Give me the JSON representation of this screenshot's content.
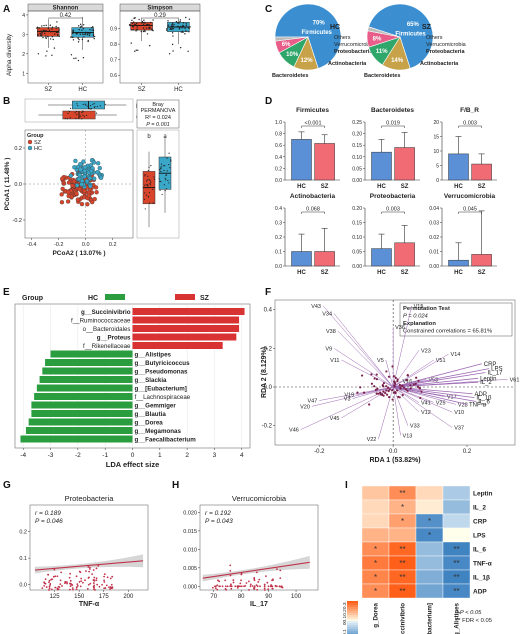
{
  "panel_labels": [
    "A",
    "B",
    "C",
    "D",
    "E",
    "F",
    "G",
    "H",
    "I"
  ],
  "colors": {
    "SZ": "#d8452b",
    "HC": "#3aa7c9",
    "blue_bar": "#5b8fd6",
    "pink_bar": "#f06b74",
    "green": "#2a9d3f",
    "red": "#d93232",
    "purple": "#9b67b3"
  },
  "chart_data": [
    {
      "id": "A",
      "type": "box",
      "ylabel": "Alpha diversity",
      "categories": [
        "SZ",
        "HC"
      ],
      "facets": [
        {
          "title": "Shannon",
          "pvalue": "0.42",
          "yticks": [
            "1",
            "2",
            "3",
            "4"
          ],
          "ylim": [
            0.5,
            4.1
          ],
          "boxes": [
            {
              "group": "SZ",
              "q1": 2.9,
              "median": 3.15,
              "q3": 3.35,
              "min": 2.3,
              "max": 3.8
            },
            {
              "group": "HC",
              "q1": 2.85,
              "median": 3.1,
              "q3": 3.35,
              "min": 2.2,
              "max": 3.9
            }
          ]
        },
        {
          "title": "Simpson",
          "pvalue": "0.29",
          "yticks": [
            "0.6",
            "0.7",
            "0.8",
            "0.9"
          ],
          "ylim": [
            0.55,
            1.0
          ],
          "boxes": [
            {
              "group": "SZ",
              "q1": 0.89,
              "median": 0.92,
              "q3": 0.94,
              "min": 0.82,
              "max": 0.97
            },
            {
              "group": "HC",
              "q1": 0.88,
              "median": 0.91,
              "q3": 0.94,
              "min": 0.8,
              "max": 0.97
            }
          ]
        }
      ]
    },
    {
      "id": "B",
      "type": "scatter",
      "xlabel": "PCoA2 ( 13.07% )",
      "ylabel": "PCoA1 ( 11.48% )",
      "xticks": [
        "-0.4",
        "-0.2",
        "0.0",
        "0.2"
      ],
      "yticks": [
        "-0.2",
        "0.0",
        "0.2"
      ],
      "xlim": [
        -0.45,
        0.35
      ],
      "ylim": [
        -0.3,
        0.3
      ],
      "legend": {
        "title": "Group",
        "entries": [
          "SZ",
          "HC"
        ]
      },
      "stats": {
        "title": "Bray",
        "method": "PERMANOVA",
        "r2": "R² = 0.024",
        "p": "P = 0.001"
      },
      "side_box_letters": [
        "b",
        "a"
      ],
      "top_box_letters": [
        "b",
        "a"
      ]
    },
    {
      "id": "C",
      "type": "pie",
      "pies": [
        {
          "group": "HC",
          "slices": [
            {
              "name": "Firmicutes",
              "value": 70,
              "label": "70%"
            },
            {
              "name": "Actinobacteria",
              "value": 12,
              "label": "12%"
            },
            {
              "name": "Proteobacteria",
              "value": 10,
              "label": "10%"
            },
            {
              "name": "Verrucomicrobia",
              "value": 6,
              "label": "6%"
            },
            {
              "name": "Others",
              "value": 2,
              "label": ""
            }
          ],
          "extra_labels": [
            "Bacteroidetes"
          ]
        },
        {
          "group": "SZ",
          "slices": [
            {
              "name": "Firmicutes",
              "value": 65,
              "label": "65%"
            },
            {
              "name": "Actinobacteria",
              "value": 14,
              "label": "14%"
            },
            {
              "name": "Proteobacteria",
              "value": 11,
              "label": "11%"
            },
            {
              "name": "Verrucomicrobia",
              "value": 8,
              "label": "8%"
            },
            {
              "name": "Others",
              "value": 2,
              "label": ""
            }
          ],
          "extra_labels": [
            "Bacteroidetes"
          ]
        }
      ],
      "colors": [
        "#3b8fd0",
        "#c8a248",
        "#2fa66a",
        "#e85d8a",
        "#bbbbbb"
      ]
    },
    {
      "id": "D",
      "type": "bar",
      "categories": [
        "HC",
        "SZ"
      ],
      "subplots": [
        {
          "title": "Firmicutes",
          "pvalue": "<0.001",
          "yticks": [
            "0.0",
            "0.2",
            "0.4",
            "0.6",
            "0.8",
            "1.0"
          ],
          "ymax": 1.0,
          "values": [
            0.7,
            0.63
          ],
          "errors": [
            0.13,
            0.15
          ]
        },
        {
          "title": "Bacteroidetes",
          "pvalue": "0.019",
          "yticks": [
            "0.00",
            "0.05",
            "0.10",
            "0.15",
            "0.20",
            "0.25"
          ],
          "ymax": 0.25,
          "values": [
            0.12,
            0.14
          ],
          "errors": [
            0.055,
            0.065
          ]
        },
        {
          "title": "F/B_R",
          "pvalue": "0.003",
          "yticks": [
            "0",
            "5",
            "10",
            "15",
            "20"
          ],
          "ymax": 20,
          "values": [
            9.0,
            5.5
          ],
          "errors": [
            6.0,
            3.5
          ]
        },
        {
          "title": "Actinobacteria",
          "pvalue": "0.068",
          "yticks": [
            "0.0",
            "0.1",
            "0.2",
            "0.3",
            "0.4"
          ],
          "ymax": 0.4,
          "values": [
            0.1,
            0.1
          ],
          "errors": [
            0.12,
            0.16
          ]
        },
        {
          "title": "Proteobacteria",
          "pvalue": "0.003",
          "yticks": [
            "0.00",
            "0.05",
            "0.10",
            "0.15",
            "0.20"
          ],
          "ymax": 0.2,
          "values": [
            0.06,
            0.08
          ],
          "errors": [
            0.05,
            0.06
          ]
        },
        {
          "title": "Verrucomicrobia",
          "pvalue": "0.045",
          "yticks": [
            "0.00",
            "0.01",
            "0.02",
            "0.03",
            "0.04"
          ],
          "ymax": 0.04,
          "values": [
            0.004,
            0.008
          ],
          "errors": [
            0.012,
            0.03
          ]
        }
      ]
    },
    {
      "id": "E",
      "type": "bar",
      "orientation": "horizontal",
      "xlabel": "LDA effect size",
      "xticks": [
        "-4",
        "-3",
        "-2",
        "-1",
        "0",
        "1",
        "2",
        "3",
        "4"
      ],
      "xlim": [
        -4.3,
        4.3
      ],
      "legend": {
        "title": "Group",
        "entries": [
          "HC",
          "SZ"
        ]
      },
      "categories": [
        "g__Succinivibrio",
        "f__Ruminococcaceae",
        "o__Bacteroidales",
        "g__Proteus",
        "f__Rikenellaceae",
        "g__Alistipes",
        "g__Butyricicoccus",
        "g__Pseudomonas",
        "g__Slackia",
        "g__[Eubacterium]",
        "f__Lachnospiraceae",
        "g__Gemmiger",
        "g__Blautia",
        "g__Dorea",
        "g__Megamonas",
        "g__Faecalibacterium"
      ],
      "values": [
        4.1,
        3.9,
        3.9,
        3.8,
        3.3,
        -3.0,
        -3.2,
        -3.3,
        -3.4,
        -3.5,
        -3.6,
        -3.7,
        -3.7,
        -3.8,
        -3.9,
        -4.1
      ],
      "bold": [
        true,
        false,
        false,
        true,
        false,
        true,
        true,
        true,
        true,
        true,
        false,
        true,
        true,
        true,
        true,
        true
      ]
    },
    {
      "id": "F",
      "type": "scatter",
      "xlabel": "RDA 1 (53.82%)",
      "ylabel": "RDA 2 (8.129%)",
      "xticks": [
        "-0.2",
        "0.0",
        "0.2"
      ],
      "yticks": [
        "-0.2",
        "0.0",
        "0.2",
        "0.4"
      ],
      "xlim": [
        -0.32,
        0.33
      ],
      "ylim": [
        -0.3,
        0.45
      ],
      "annotation": [
        "Permutation Test",
        "P = 0.024",
        "Explanation",
        "Constrained correlations = 65.81%"
      ],
      "env_vectors": [
        {
          "name": "CRP",
          "x": 0.24,
          "y": 0.12
        },
        {
          "name": "LPS",
          "x": 0.26,
          "y": 0.095
        },
        {
          "name": "IL_17",
          "x": 0.25,
          "y": 0.075
        },
        {
          "name": "Leptin",
          "x": 0.23,
          "y": 0.045
        },
        {
          "name": "IL_2",
          "x": 0.23,
          "y": 0.025
        },
        {
          "name": "ADP",
          "x": 0.215,
          "y": -0.035
        },
        {
          "name": "IL_1β",
          "x": 0.22,
          "y": -0.055
        },
        {
          "name": "IL_6",
          "x": 0.225,
          "y": -0.075
        },
        {
          "name": "TNF-α",
          "x": 0.2,
          "y": -0.09
        }
      ],
      "species_vectors": [
        {
          "name": "V43",
          "x": -0.19,
          "y": 0.42
        },
        {
          "name": "V34",
          "x": -0.16,
          "y": 0.38
        },
        {
          "name": "V38",
          "x": -0.15,
          "y": 0.29
        },
        {
          "name": "V9",
          "x": -0.16,
          "y": 0.2
        },
        {
          "name": "V11",
          "x": -0.14,
          "y": 0.14
        },
        {
          "name": "V47",
          "x": -0.2,
          "y": -0.07
        },
        {
          "name": "V20",
          "x": -0.22,
          "y": -0.1
        },
        {
          "name": "V46",
          "x": -0.25,
          "y": -0.22
        },
        {
          "name": "V45",
          "x": -0.14,
          "y": -0.16
        },
        {
          "name": "V22",
          "x": -0.04,
          "y": -0.27
        },
        {
          "name": "V36",
          "x": 0.0,
          "y": 0.31
        },
        {
          "name": "V15",
          "x": 0.05,
          "y": 0.42
        },
        {
          "name": "V23",
          "x": 0.07,
          "y": 0.19
        },
        {
          "name": "V51",
          "x": 0.11,
          "y": 0.14
        },
        {
          "name": "V14",
          "x": 0.15,
          "y": 0.17
        },
        {
          "name": "V61",
          "x": 0.31,
          "y": 0.04
        },
        {
          "name": "V17",
          "x": 0.14,
          "y": -0.05
        },
        {
          "name": "V25",
          "x": 0.11,
          "y": -0.08
        },
        {
          "name": "V28",
          "x": 0.17,
          "y": -0.09
        },
        {
          "name": "V10",
          "x": 0.16,
          "y": -0.13
        },
        {
          "name": "V37",
          "x": 0.16,
          "y": -0.21
        },
        {
          "name": "V33",
          "x": 0.04,
          "y": -0.2
        },
        {
          "name": "V13",
          "x": 0.02,
          "y": -0.25
        },
        {
          "name": "V12",
          "x": 0.07,
          "y": -0.13
        },
        {
          "name": "V41",
          "x": 0.07,
          "y": -0.08
        },
        {
          "name": "V53",
          "x": 0.09,
          "y": 0.04
        },
        {
          "name": "V5",
          "x": -0.02,
          "y": 0.14
        },
        {
          "name": "V16",
          "x": 0.02,
          "y": 0.03
        },
        {
          "name": "V19",
          "x": -0.1,
          "y": -0.04
        },
        {
          "name": "V3",
          "x": -0.11,
          "y": -0.06
        }
      ]
    },
    {
      "id": "G",
      "type": "scatter",
      "title": "Proteobacteria",
      "xlabel": "TNF-α",
      "stats": [
        "r = 0.189",
        "P = 0.046"
      ],
      "xticks": [
        "125",
        "150",
        "175",
        "200"
      ],
      "yticks": [
        "0.0",
        "0.1",
        "0.2"
      ],
      "xlim": [
        100,
        220
      ],
      "ylim": [
        -0.02,
        0.3
      ],
      "fit": {
        "x": [
          105,
          215
        ],
        "y": [
          0.055,
          0.09
        ]
      }
    },
    {
      "id": "H",
      "type": "scatter",
      "title": "Verrucomicrobia",
      "xlabel": "IL_17",
      "stats": [
        "r = 0.192",
        "P = 0.043"
      ],
      "xticks": [
        "70",
        "80",
        "90",
        "100"
      ],
      "yticks": [
        "0.000",
        "0.005",
        "0.010",
        "0.015",
        "0.020"
      ],
      "xlim": [
        65,
        108
      ],
      "ylim": [
        -0.001,
        0.022
      ],
      "fit": {
        "x": [
          66,
          105
        ],
        "y": [
          0.0022,
          0.0065
        ]
      }
    },
    {
      "id": "I",
      "type": "heatmap",
      "rows": [
        "Leptin",
        "IL_2",
        "CRP",
        "LPS",
        "IL_6",
        "TNF-α",
        "IL_1β",
        "ADP"
      ],
      "cols": [
        "g_Dorea",
        "g_Succinivibrio",
        "g_[Eubacterium]",
        "g_Alistipes"
      ],
      "values": [
        [
          0.15,
          0.3,
          0.1,
          -0.15
        ],
        [
          0.1,
          0.2,
          0.05,
          -0.2
        ],
        [
          0.1,
          0.25,
          -0.35,
          -0.1
        ],
        [
          0.2,
          0.2,
          -0.38,
          0.0
        ],
        [
          0.3,
          0.4,
          -0.2,
          -0.4
        ],
        [
          0.35,
          0.42,
          -0.2,
          -0.38
        ],
        [
          0.32,
          0.4,
          -0.25,
          -0.4
        ],
        [
          0.3,
          0.42,
          -0.28,
          -0.38
        ]
      ],
      "marks": [
        [
          "",
          "**",
          "",
          ""
        ],
        [
          "",
          "*",
          "",
          ""
        ],
        [
          "",
          "*",
          "*",
          ""
        ],
        [
          "",
          "",
          "*",
          ""
        ],
        [
          "*",
          "**",
          "",
          "**"
        ],
        [
          "*",
          "**",
          "",
          "**"
        ],
        [
          "*",
          "**",
          "",
          "**"
        ],
        [
          "*",
          "**",
          "",
          "**"
        ]
      ],
      "colorbar_ticks": [
        "-0.3",
        "-0.2",
        "-0.1",
        "0",
        "0.1",
        "0.2",
        "0.3"
      ],
      "footnote": [
        "* P < 0.05",
        "** FDR < 0.05"
      ]
    }
  ]
}
